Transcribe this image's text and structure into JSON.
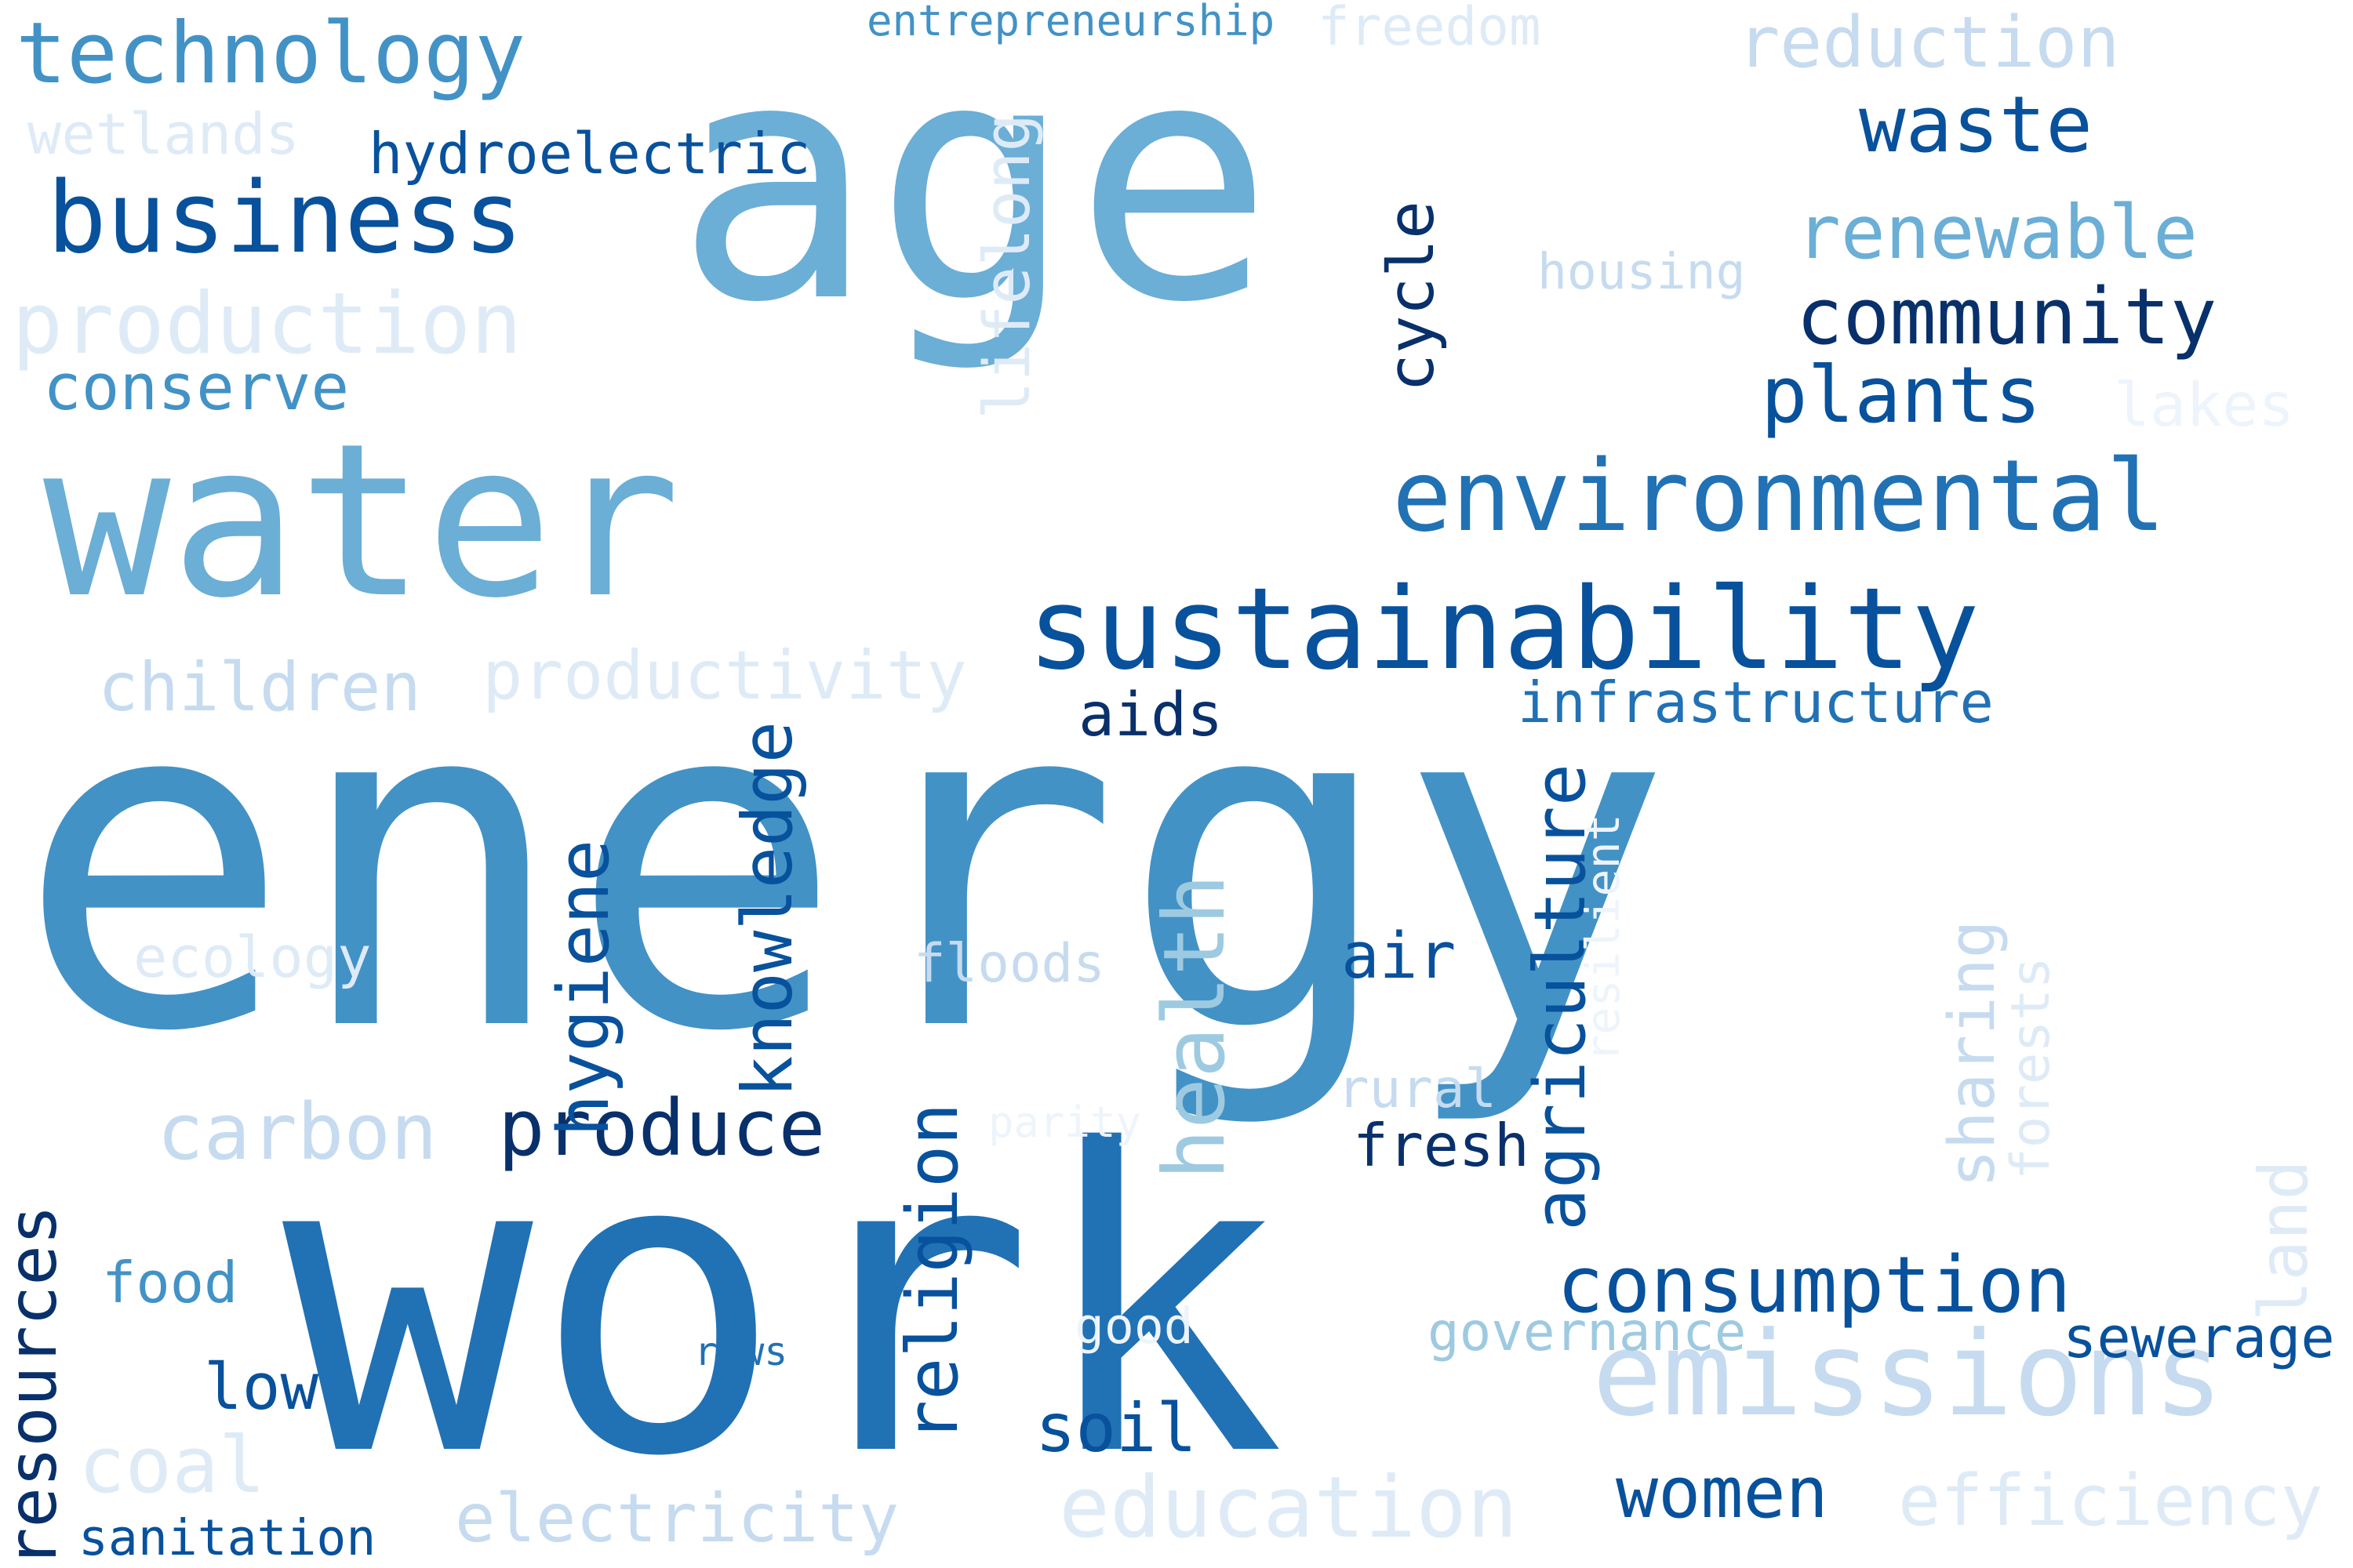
{
  "palette": {
    "c0": "#08306b",
    "c1": "#08519c",
    "c2": "#2171b5",
    "c3": "#4292c6",
    "c4": "#6baed6",
    "c5": "#9ecae1",
    "c6": "#c6dbef",
    "c7": "#deebf7",
    "c8": "#eef4fb"
  },
  "words": [
    {
      "id": "age",
      "text": "age",
      "color": "c4"
    },
    {
      "id": "energy",
      "text": "energy",
      "color": "c3"
    },
    {
      "id": "work",
      "text": "work",
      "color": "c2"
    },
    {
      "id": "water",
      "text": "water",
      "color": "c4"
    },
    {
      "id": "sustainability",
      "text": "sustainability",
      "color": "c1"
    },
    {
      "id": "environmental",
      "text": "environmental",
      "color": "c2"
    },
    {
      "id": "emissions",
      "text": "emissions",
      "color": "c6"
    },
    {
      "id": "technology",
      "text": "technology",
      "color": "c3"
    },
    {
      "id": "business",
      "text": "business",
      "color": "c1"
    },
    {
      "id": "production",
      "text": "production",
      "color": "c7"
    },
    {
      "id": "conserve",
      "text": "conserve",
      "color": "c3"
    },
    {
      "id": "waste",
      "text": "waste",
      "color": "c1"
    },
    {
      "id": "renewable",
      "text": "renewable",
      "color": "c4"
    },
    {
      "id": "community",
      "text": "community",
      "color": "c0"
    },
    {
      "id": "plants",
      "text": "plants",
      "color": "c1"
    },
    {
      "id": "reduction",
      "text": "reduction",
      "color": "c6"
    },
    {
      "id": "consumption",
      "text": "consumption",
      "color": "c1"
    },
    {
      "id": "education",
      "text": "education",
      "color": "c7"
    },
    {
      "id": "efficiency",
      "text": "efficiency",
      "color": "c7"
    },
    {
      "id": "carbon",
      "text": "carbon",
      "color": "c6"
    },
    {
      "id": "produce",
      "text": "produce",
      "color": "c0"
    },
    {
      "id": "health",
      "text": "health",
      "color": "c5"
    },
    {
      "id": "resources",
      "text": "resources",
      "color": "c0"
    },
    {
      "id": "children",
      "text": "children",
      "color": "c6"
    },
    {
      "id": "productivity",
      "text": "productivity",
      "color": "c7"
    },
    {
      "id": "infrastructure",
      "text": "infrastructure",
      "color": "c2"
    },
    {
      "id": "knowledge",
      "text": "knowledge",
      "color": "c1"
    },
    {
      "id": "hygiene",
      "text": "hygiene",
      "color": "c1"
    },
    {
      "id": "agriculture",
      "text": "agriculture",
      "color": "c1"
    },
    {
      "id": "religion",
      "text": "religion",
      "color": "c1"
    },
    {
      "id": "lifelong",
      "text": "lifelong",
      "color": "c7"
    },
    {
      "id": "cycle",
      "text": "cycle",
      "color": "c0"
    },
    {
      "id": "hydroelectric",
      "text": "hydroelectric",
      "color": "c1"
    },
    {
      "id": "wetlands",
      "text": "wetlands",
      "color": "c7"
    },
    {
      "id": "entrepreneurship",
      "text": "entrepreneurship",
      "color": "c3"
    },
    {
      "id": "freedom",
      "text": "freedom",
      "color": "c7"
    },
    {
      "id": "housing",
      "text": "housing",
      "color": "c6"
    },
    {
      "id": "lakes",
      "text": "lakes",
      "color": "c8"
    },
    {
      "id": "aids",
      "text": "aids",
      "color": "c0"
    },
    {
      "id": "ecology",
      "text": "ecology",
      "color": "c7"
    },
    {
      "id": "floods",
      "text": "floods",
      "color": "c6"
    },
    {
      "id": "air",
      "text": "air",
      "color": "c1"
    },
    {
      "id": "resilient",
      "text": "resilient",
      "color": "c8"
    },
    {
      "id": "sharing",
      "text": "sharing",
      "color": "c6"
    },
    {
      "id": "forests",
      "text": "forests",
      "color": "c7"
    },
    {
      "id": "land",
      "text": "land",
      "color": "c7"
    },
    {
      "id": "rural",
      "text": "rural",
      "color": "c6"
    },
    {
      "id": "fresh",
      "text": "fresh",
      "color": "c0"
    },
    {
      "id": "parity",
      "text": "parity",
      "color": "c8"
    },
    {
      "id": "governance",
      "text": "governance",
      "color": "c5"
    },
    {
      "id": "sewerage",
      "text": "sewerage",
      "color": "c1"
    },
    {
      "id": "food",
      "text": "food",
      "color": "c3"
    },
    {
      "id": "low",
      "text": "low",
      "color": "c1"
    },
    {
      "id": "coal",
      "text": "coal",
      "color": "c7"
    },
    {
      "id": "sanitation",
      "text": "sanitation",
      "color": "c1"
    },
    {
      "id": "electricity",
      "text": "electricity",
      "color": "c6"
    },
    {
      "id": "good",
      "text": "good",
      "color": "c8"
    },
    {
      "id": "rows",
      "text": "rows",
      "color": "c2"
    },
    {
      "id": "soil",
      "text": "soil",
      "color": "c1"
    },
    {
      "id": "women",
      "text": "women",
      "color": "c1"
    }
  ]
}
